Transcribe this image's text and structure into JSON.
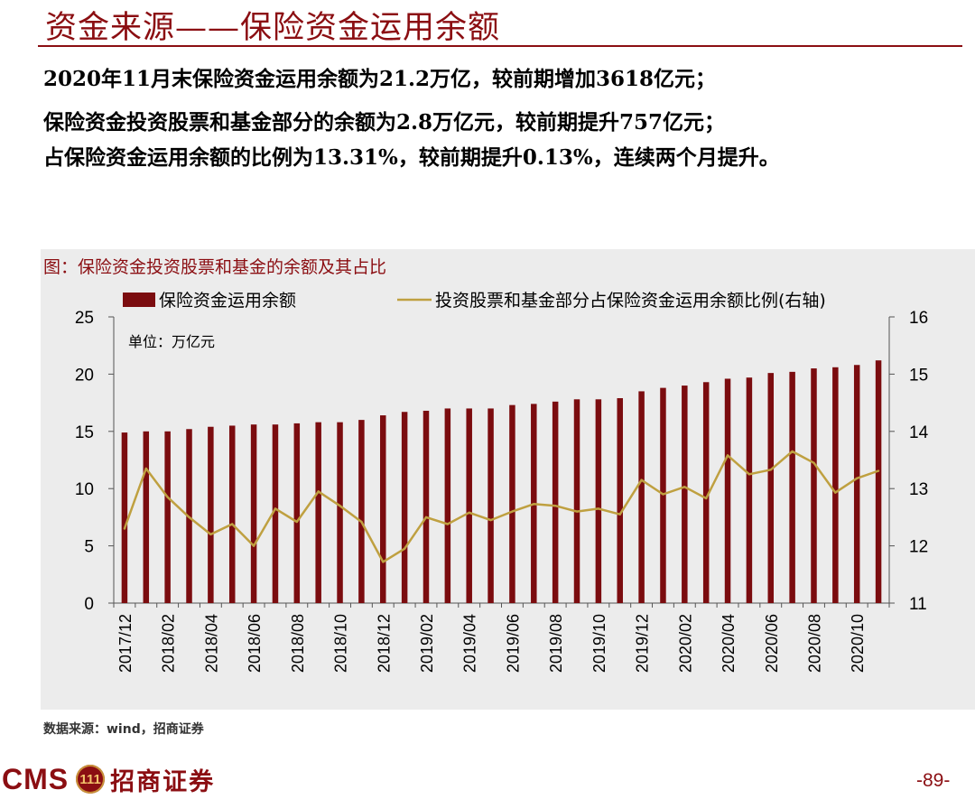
{
  "page": {
    "title": "资金来源——保险资金运用余额",
    "lines": [
      "2020年11月末保险资金运用余额为21.2万亿，较前期增加3618亿元；",
      "保险资金投资股票和基金部分的余额为2.8万亿元，较前期提升757亿元；",
      "占保险资金运用余额的比例为13.31%，较前期提升0.13%，连续两个月提升。"
    ],
    "source": "数据来源：wind，招商证券",
    "logo_text": "CMS",
    "logo_badge": "111",
    "logo_cn": "招商证券",
    "page_number": "-89-"
  },
  "colors": {
    "brand": "#8B0E12",
    "bar": "#7B0C0F",
    "line": "#BFA040",
    "bg": "#ececec"
  },
  "chart_data": {
    "type": "bar+line",
    "title": "图：保险资金投资股票和基金的余额及其占比",
    "unit_label": "单位：万亿元",
    "categories": [
      "2017/12",
      "2018/01",
      "2018/02",
      "2018/03",
      "2018/04",
      "2018/05",
      "2018/06",
      "2018/07",
      "2018/08",
      "2018/09",
      "2018/10",
      "2018/11",
      "2018/12",
      "2019/01",
      "2019/02",
      "2019/03",
      "2019/04",
      "2019/05",
      "2019/06",
      "2019/07",
      "2019/08",
      "2019/09",
      "2019/10",
      "2019/11",
      "2019/12",
      "2020/01",
      "2020/02",
      "2020/03",
      "2020/04",
      "2020/05",
      "2020/06",
      "2020/07",
      "2020/08",
      "2020/09",
      "2020/10",
      "2020/11"
    ],
    "x_tick_labels": [
      "2017/12",
      "2018/02",
      "2018/04",
      "2018/06",
      "2018/08",
      "2018/10",
      "2018/12",
      "2019/02",
      "2019/04",
      "2019/06",
      "2019/08",
      "2019/10",
      "2019/12",
      "2020/02",
      "2020/04",
      "2020/06",
      "2020/08",
      "2020/10"
    ],
    "series": [
      {
        "name": "保险资金运用余额",
        "type": "bar",
        "axis": "left",
        "values": [
          14.9,
          15.0,
          15.0,
          15.2,
          15.4,
          15.5,
          15.6,
          15.6,
          15.7,
          15.8,
          15.8,
          16.0,
          16.4,
          16.7,
          16.8,
          17.0,
          17.0,
          17.0,
          17.3,
          17.4,
          17.6,
          17.8,
          17.8,
          17.9,
          18.5,
          18.8,
          19.0,
          19.3,
          19.6,
          19.7,
          20.1,
          20.2,
          20.5,
          20.6,
          20.8,
          21.2
        ]
      },
      {
        "name": "投资股票和基金部分占保险资金运用余额比例(右轴)",
        "type": "line",
        "axis": "right",
        "values": [
          12.3,
          13.35,
          12.85,
          12.5,
          12.2,
          12.38,
          12.0,
          12.65,
          12.42,
          12.95,
          12.7,
          12.42,
          11.72,
          11.95,
          12.5,
          12.38,
          12.58,
          12.45,
          12.6,
          12.73,
          12.7,
          12.6,
          12.65,
          12.55,
          13.15,
          12.9,
          13.03,
          12.83,
          13.58,
          13.25,
          13.33,
          13.65,
          13.45,
          12.93,
          13.18,
          13.31
        ]
      }
    ],
    "y_left": {
      "min": 0,
      "max": 25,
      "ticks": [
        0,
        5,
        10,
        15,
        20,
        25
      ]
    },
    "y_right": {
      "min": 11,
      "max": 16,
      "ticks": [
        11,
        12,
        13,
        14,
        15,
        16
      ]
    }
  }
}
